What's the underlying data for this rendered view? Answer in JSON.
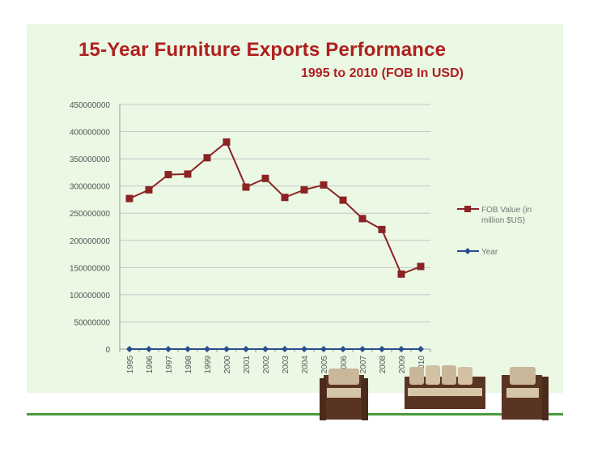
{
  "header": {
    "title": "15-Year Furniture Exports Performance",
    "subtitle": "1995 to 2010 (FOB In USD)"
  },
  "colors": {
    "fob": "#8b2323",
    "year": "#2a4d8f",
    "title": "#b01e1e",
    "panel": "#eaf8e4",
    "rule": "#4a9a3c"
  },
  "chart_data": {
    "type": "line",
    "categories": [
      "1995",
      "1996",
      "1997",
      "1998",
      "1999",
      "2000",
      "2001",
      "2002",
      "2003",
      "2004",
      "2005",
      "2006",
      "2007",
      "2008",
      "2009",
      "2010"
    ],
    "series": [
      {
        "name": "FOB Value (in million $US)",
        "values": [
          277000000,
          293000000,
          321000000,
          322000000,
          352000000,
          381000000,
          298000000,
          314000000,
          279000000,
          293000000,
          302000000,
          274000000,
          240000000,
          220000000,
          138000000,
          152000000
        ]
      },
      {
        "name": "Year",
        "values": [
          1995,
          1996,
          1997,
          1998,
          1999,
          2000,
          2001,
          2002,
          2003,
          2004,
          2005,
          2006,
          2007,
          2008,
          2009,
          2010
        ]
      }
    ],
    "ylim": [
      0,
      450000000
    ],
    "yticks": [
      "450000000",
      "400000000",
      "350000000",
      "300000000",
      "250000000",
      "200000000",
      "150000000",
      "100000000",
      "50000000",
      "0"
    ],
    "grid": true,
    "legend_position": "right"
  }
}
